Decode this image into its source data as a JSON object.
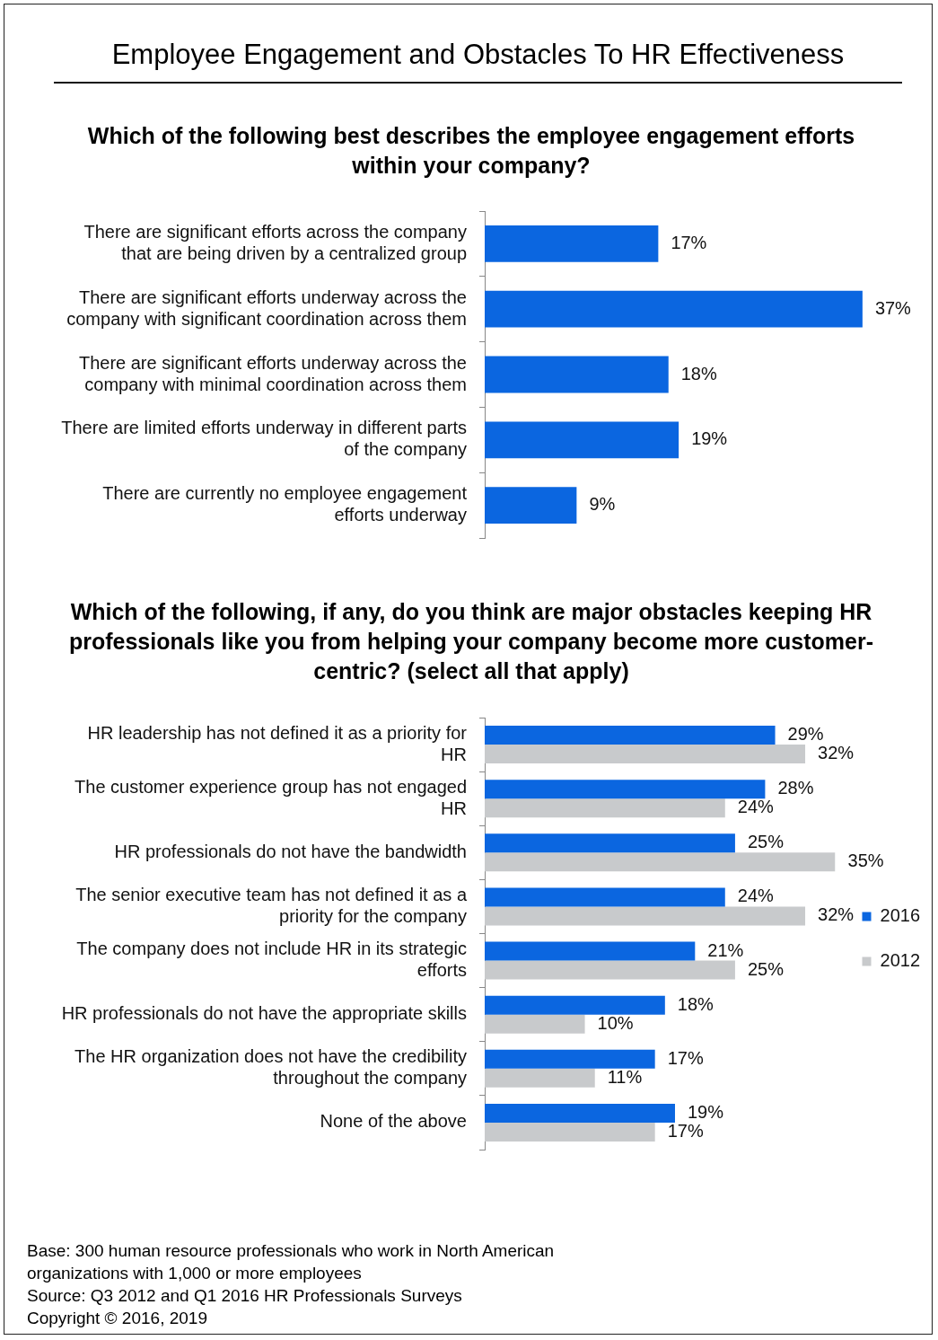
{
  "chart_data": [
    {
      "type": "bar",
      "orientation": "horizontal",
      "title": "Employee Engagement and Obstacles To HR Effectiveness",
      "subtitle": "Which of the following best describes the employee engagement efforts within your company?",
      "categories": [
        "There are significant efforts across the company that are being driven by a centralized group",
        "There are significant efforts underway across the company with significant coordination across them",
        "There are significant efforts underway across the company with minimal coordination across them",
        "There are limited efforts underway in different parts of the company",
        "There are currently no employee engagement efforts underway"
      ],
      "values": [
        17,
        37,
        18,
        19,
        9
      ],
      "color": "#0b66e0",
      "value_labels": [
        "17%",
        "37%",
        "18%",
        "19%",
        "9%"
      ],
      "tick_labels": "y"
    },
    {
      "type": "bar",
      "orientation": "horizontal",
      "title": "Which of the following, if any, do you think are major obstacles keeping HR professionals like you from helping your company become more customer-centric? (select all that apply)",
      "categories": [
        "HR leadership has not defined it as a priority for HR",
        "The customer experience group has not engaged HR",
        "HR professionals do not have the bandwidth",
        "The senior executive team has not defined it as a priority for the company",
        "The company does not include HR in its strategic efforts",
        "HR professionals do not have the appropriate skills",
        "The HR organization does not have the credibility throughout the company",
        "None of the above"
      ],
      "series": [
        {
          "name": "2016",
          "color": "#0b66e0",
          "values": [
            29,
            28,
            25,
            24,
            21,
            18,
            17,
            19
          ],
          "value_labels": [
            "29%",
            "28%",
            "25%",
            "24%",
            "21%",
            "18%",
            "17%",
            "19%"
          ]
        },
        {
          "name": "2012",
          "color": "#c8cacc",
          "values": [
            32,
            24,
            35,
            32,
            25,
            10,
            11,
            17
          ],
          "value_labels": [
            "32%",
            "24%",
            "35%",
            "32%",
            "25%",
            "10%",
            "11%",
            "17%"
          ]
        }
      ],
      "tick_labels": "y",
      "legend": "right",
      "annotations": [
        "Base: 300 human resource professionals who work in North American organizations with 1,000 or more employees",
        "Source: Q3 2012 and Q1 2016 HR Professionals Surveys",
        "Copyright © 2016, 2019"
      ]
    }
  ]
}
